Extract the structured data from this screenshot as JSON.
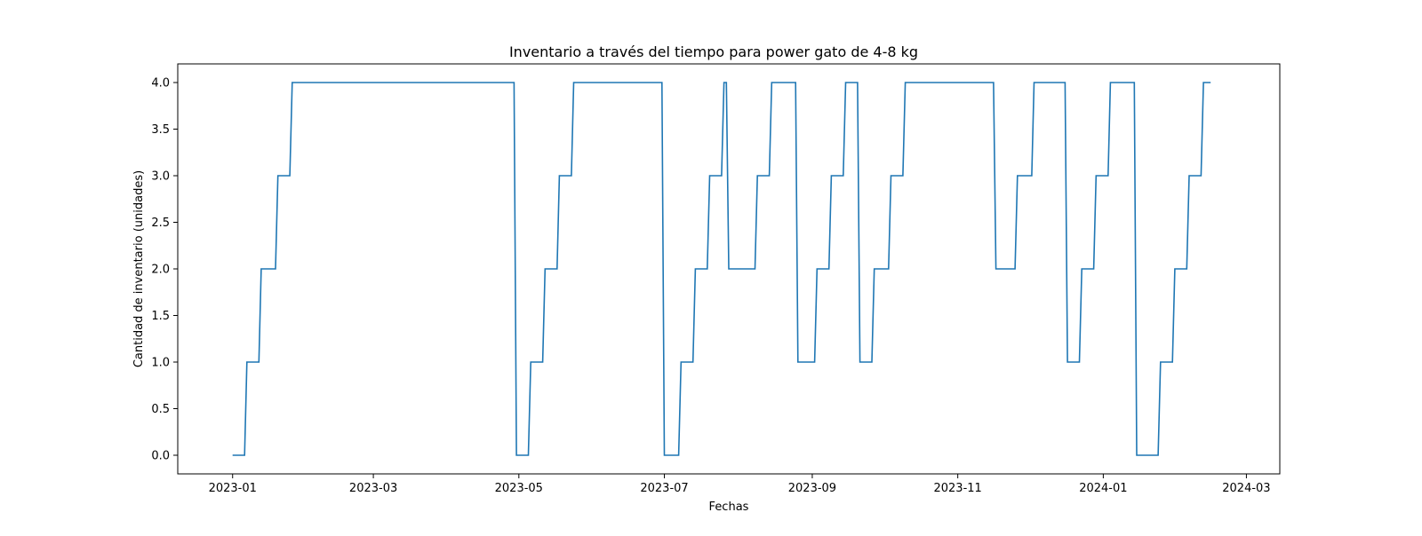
{
  "chart_data": {
    "type": "line",
    "title": "Inventario a través del tiempo para power gato de 4-8 kg",
    "xlabel": "Fechas",
    "ylabel": "Cantidad de inventario (unidades)",
    "xlim": [
      "2022-12-09",
      "2024-03-15"
    ],
    "ylim": [
      -0.2,
      4.2
    ],
    "x_ticks": [
      {
        "date": "2023-01-01",
        "label": "2023-01"
      },
      {
        "date": "2023-03-01",
        "label": "2023-03"
      },
      {
        "date": "2023-05-01",
        "label": "2023-05"
      },
      {
        "date": "2023-07-01",
        "label": "2023-07"
      },
      {
        "date": "2023-09-01",
        "label": "2023-09"
      },
      {
        "date": "2023-11-01",
        "label": "2023-11"
      },
      {
        "date": "2024-01-01",
        "label": "2024-01"
      },
      {
        "date": "2024-03-01",
        "label": "2024-03"
      }
    ],
    "y_ticks": [
      {
        "value": 0.0,
        "label": "0.0"
      },
      {
        "value": 0.5,
        "label": "0.5"
      },
      {
        "value": 1.0,
        "label": "1.0"
      },
      {
        "value": 1.5,
        "label": "1.5"
      },
      {
        "value": 2.0,
        "label": "2.0"
      },
      {
        "value": 2.5,
        "label": "2.5"
      },
      {
        "value": 3.0,
        "label": "3.0"
      },
      {
        "value": 3.5,
        "label": "3.5"
      },
      {
        "value": 4.0,
        "label": "4.0"
      }
    ],
    "grid": false,
    "line_color": "#1f77b4",
    "series": [
      {
        "points": [
          [
            "2023-01-01",
            0
          ],
          [
            "2023-01-06",
            0
          ],
          [
            "2023-01-07",
            1
          ],
          [
            "2023-01-12",
            1
          ],
          [
            "2023-01-13",
            2
          ],
          [
            "2023-01-19",
            2
          ],
          [
            "2023-01-20",
            3
          ],
          [
            "2023-01-25",
            3
          ],
          [
            "2023-01-26",
            4
          ],
          [
            "2023-04-29",
            4
          ],
          [
            "2023-04-30",
            0
          ],
          [
            "2023-05-05",
            0
          ],
          [
            "2023-05-06",
            1
          ],
          [
            "2023-05-11",
            1
          ],
          [
            "2023-05-12",
            2
          ],
          [
            "2023-05-17",
            2
          ],
          [
            "2023-05-18",
            3
          ],
          [
            "2023-05-23",
            3
          ],
          [
            "2023-05-24",
            4
          ],
          [
            "2023-06-30",
            4
          ],
          [
            "2023-07-01",
            0
          ],
          [
            "2023-07-07",
            0
          ],
          [
            "2023-07-08",
            1
          ],
          [
            "2023-07-13",
            1
          ],
          [
            "2023-07-14",
            2
          ],
          [
            "2023-07-19",
            2
          ],
          [
            "2023-07-20",
            3
          ],
          [
            "2023-07-25",
            3
          ],
          [
            "2023-07-26",
            4
          ],
          [
            "2023-07-27",
            4
          ],
          [
            "2023-07-28",
            2
          ],
          [
            "2023-08-08",
            2
          ],
          [
            "2023-08-09",
            3
          ],
          [
            "2023-08-14",
            3
          ],
          [
            "2023-08-15",
            4
          ],
          [
            "2023-08-25",
            4
          ],
          [
            "2023-08-26",
            1
          ],
          [
            "2023-09-02",
            1
          ],
          [
            "2023-09-03",
            2
          ],
          [
            "2023-09-08",
            2
          ],
          [
            "2023-09-09",
            3
          ],
          [
            "2023-09-14",
            3
          ],
          [
            "2023-09-15",
            4
          ],
          [
            "2023-09-20",
            4
          ],
          [
            "2023-09-21",
            1
          ],
          [
            "2023-09-26",
            1
          ],
          [
            "2023-09-27",
            2
          ],
          [
            "2023-10-03",
            2
          ],
          [
            "2023-10-04",
            3
          ],
          [
            "2023-10-09",
            3
          ],
          [
            "2023-10-10",
            4
          ],
          [
            "2023-11-16",
            4
          ],
          [
            "2023-11-17",
            2
          ],
          [
            "2023-11-25",
            2
          ],
          [
            "2023-11-26",
            3
          ],
          [
            "2023-12-02",
            3
          ],
          [
            "2023-12-03",
            4
          ],
          [
            "2023-12-16",
            4
          ],
          [
            "2023-12-17",
            1
          ],
          [
            "2023-12-22",
            1
          ],
          [
            "2023-12-23",
            2
          ],
          [
            "2023-12-28",
            2
          ],
          [
            "2023-12-29",
            3
          ],
          [
            "2024-01-03",
            3
          ],
          [
            "2024-01-04",
            4
          ],
          [
            "2024-01-14",
            4
          ],
          [
            "2024-01-15",
            0
          ],
          [
            "2024-01-24",
            0
          ],
          [
            "2024-01-25",
            1
          ],
          [
            "2024-01-30",
            1
          ],
          [
            "2024-01-31",
            2
          ],
          [
            "2024-02-05",
            2
          ],
          [
            "2024-02-06",
            3
          ],
          [
            "2024-02-11",
            3
          ],
          [
            "2024-02-12",
            4
          ],
          [
            "2024-02-15",
            4
          ]
        ]
      }
    ]
  }
}
